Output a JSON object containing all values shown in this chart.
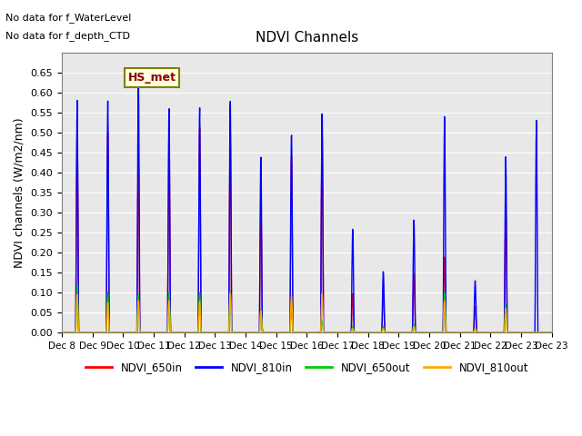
{
  "title": "NDVI Channels",
  "ylabel": "NDVI channels (W/m2/nm)",
  "xlabel": "",
  "ylim": [
    0.0,
    0.7
  ],
  "yticks": [
    0.0,
    0.05,
    0.1,
    0.15,
    0.2,
    0.25,
    0.3,
    0.35,
    0.4,
    0.45,
    0.5,
    0.55,
    0.6,
    0.65
  ],
  "note1": "No data for f_WaterLevel",
  "note2": "No data for f_depth_CTD",
  "legend_label": "HS_met",
  "bg_color": "#e8e8e8",
  "line_colors": {
    "NDVI_650in": "#ff0000",
    "NDVI_810in": "#0000ff",
    "NDVI_650out": "#00cc00",
    "NDVI_810out": "#ffaa00"
  },
  "days": [
    "Dec 8",
    "Dec 9",
    "Dec 10",
    "Dec 11",
    "Dec 12",
    "Dec 13",
    "Dec 14",
    "Dec 15",
    "Dec 16",
    "Dec 17",
    "Dec 18",
    "Dec 19",
    "Dec 20",
    "Dec 21",
    "Dec 22",
    "Dec 23"
  ],
  "peaks_810in": [
    0.58,
    0.58,
    0.65,
    0.565,
    0.57,
    0.59,
    0.45,
    0.51,
    0.565,
    0.265,
    0.155,
    0.285,
    0.545,
    0.13,
    0.44,
    0.53
  ],
  "peaks_650in": [
    0.525,
    0.5,
    0.45,
    0.51,
    0.52,
    0.51,
    0.335,
    0.455,
    0.51,
    0.1,
    0.1,
    0.15,
    0.19,
    0.065,
    0.315,
    0.0
  ],
  "peaks_650out": [
    0.12,
    0.1,
    0.095,
    0.1,
    0.1,
    0.105,
    0.06,
    0.06,
    0.03,
    0.015,
    0.015,
    0.02,
    0.1,
    0.01,
    0.07,
    0.0
  ],
  "peaks_810out": [
    0.095,
    0.075,
    0.08,
    0.08,
    0.08,
    0.1,
    0.055,
    0.095,
    0.1,
    0.01,
    0.01,
    0.015,
    0.08,
    0.01,
    0.06,
    0.0
  ]
}
